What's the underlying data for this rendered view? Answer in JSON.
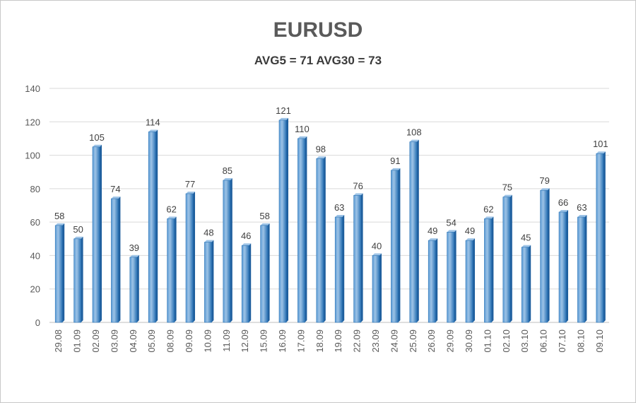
{
  "chart_data": {
    "type": "bar",
    "title": "EURUSD",
    "subtitle": "AVG5 = 71 AVG30 = 73",
    "xlabel": "",
    "ylabel": "",
    "ylim": [
      0,
      140
    ],
    "yticks": [
      0,
      20,
      40,
      60,
      80,
      100,
      120,
      140
    ],
    "grid": true,
    "legend": "none",
    "categories": [
      "29.08",
      "01.09",
      "02.09",
      "03.09",
      "04.09",
      "05.09",
      "08.09",
      "09.09",
      "10.09",
      "11.09",
      "12.09",
      "15.09",
      "16.09",
      "17.09",
      "18.09",
      "19.09",
      "22.09",
      "23.09",
      "24.09",
      "25.09",
      "26.09",
      "29.09",
      "30.09",
      "01.10",
      "02.10",
      "03.10",
      "06.10",
      "07.10",
      "08.10",
      "09.10"
    ],
    "values": [
      58,
      50,
      105,
      74,
      39,
      114,
      62,
      77,
      48,
      85,
      46,
      58,
      121,
      110,
      98,
      63,
      76,
      40,
      91,
      108,
      49,
      54,
      49,
      62,
      75,
      45,
      79,
      66,
      63,
      101
    ],
    "colors": {
      "bar_light": "#9dc3e6",
      "bar_mid": "#5b9bd5",
      "bar_dark": "#2e75b6",
      "bar_side": "#1f5f9e",
      "grid": "#d9d9d9",
      "axis": "#bfbfbf"
    }
  }
}
